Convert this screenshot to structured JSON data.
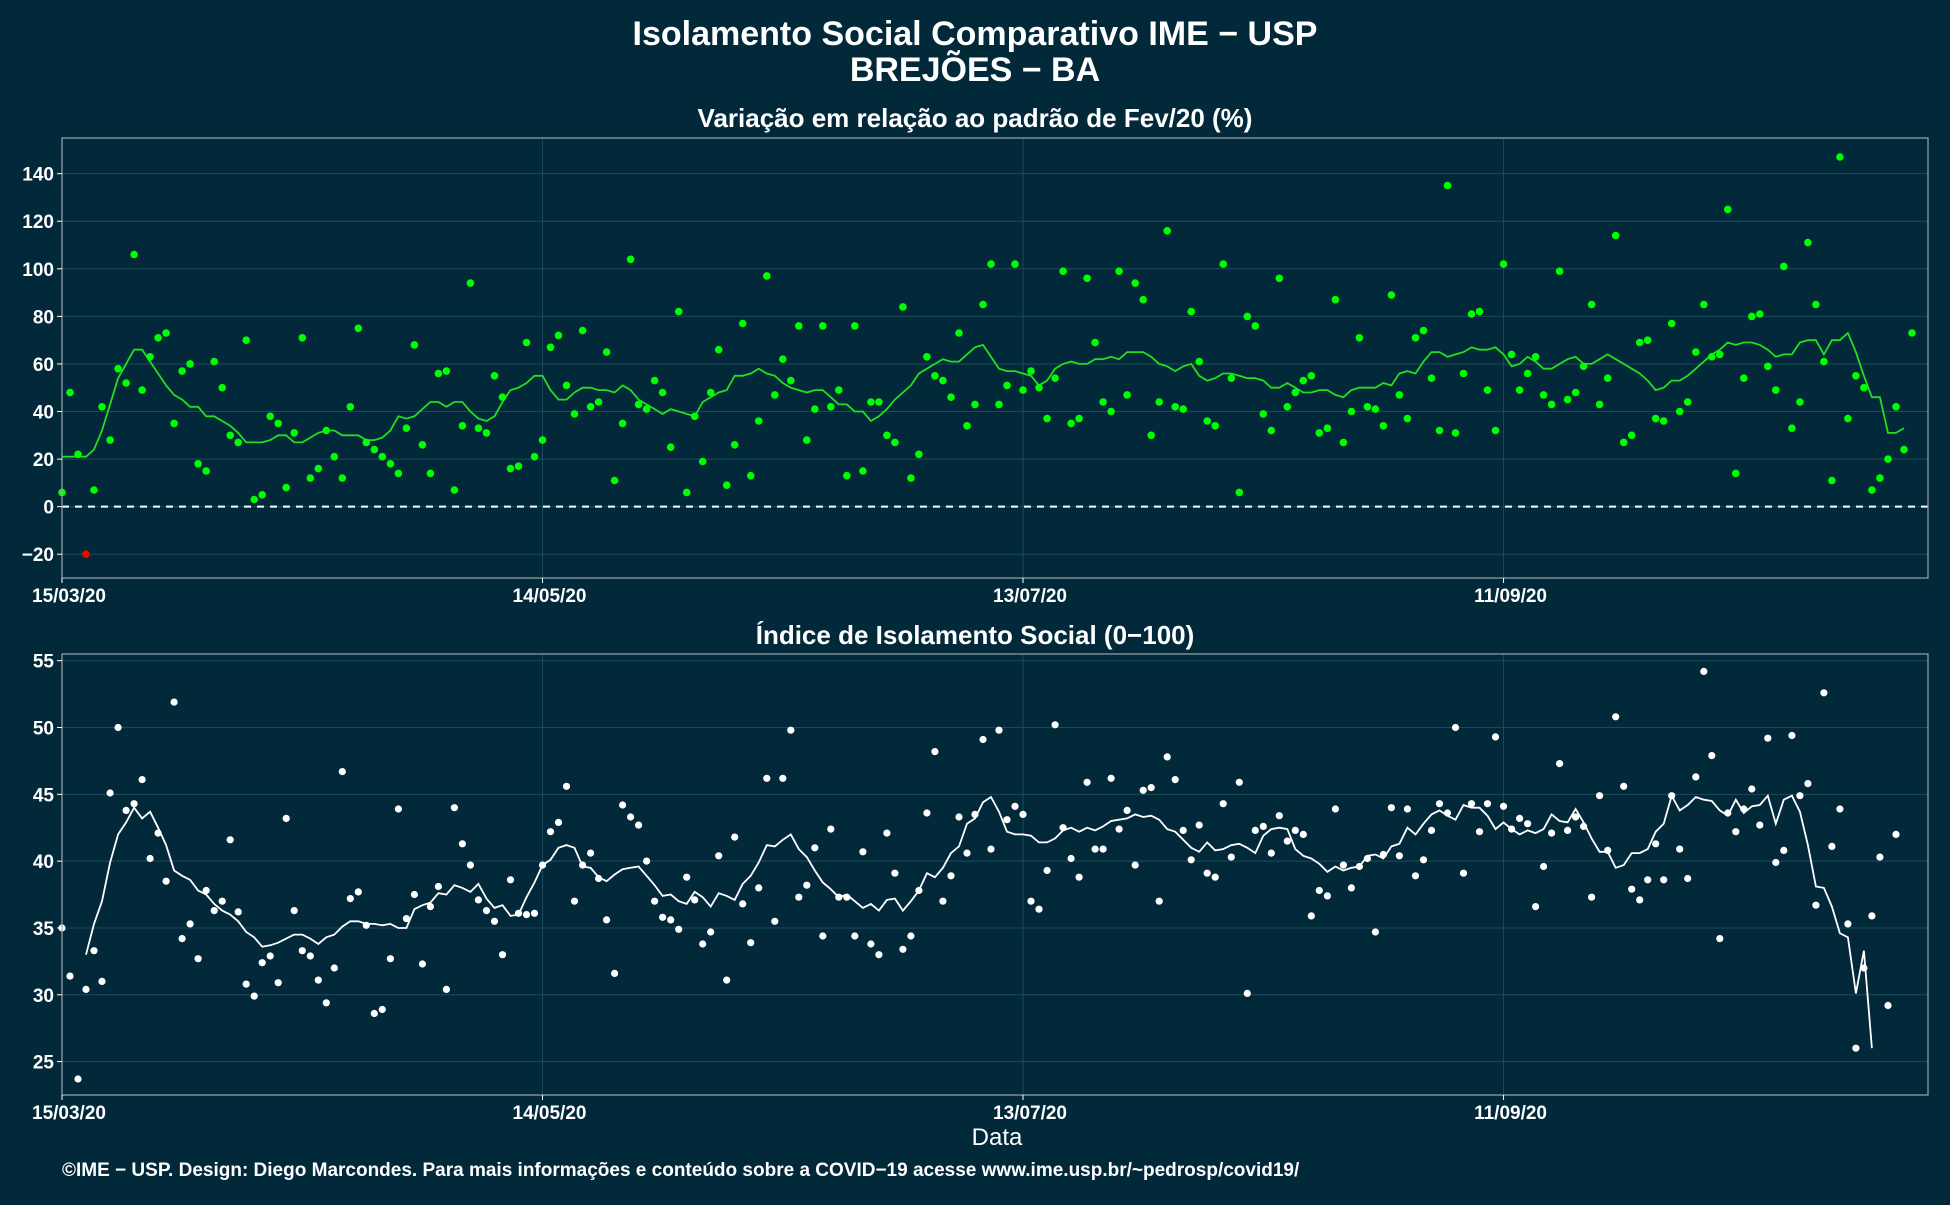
{
  "title_line1": "Isolamento Social Comparativo IME − USP",
  "title_line2": "BREJÕES − BA",
  "footer": "©IME − USP. Design: Diego Marcondes. Para mais informações e conteúdo sobre a COVID−19 acesse www.ime.usp.br/~pedrosp/covid19/",
  "colors": {
    "background": "#02293a",
    "panel_border": "#9aa7ad",
    "grid": "#1c4a5a",
    "green": "#00ff00",
    "line_green": "#22dd22",
    "white": "#ffffff",
    "negative": "#ff0000"
  },
  "chart_data": [
    {
      "type": "scatter",
      "title": "Variação em relação ao padrão de Fev/20 (%)",
      "xlabel": "",
      "ylabel": "",
      "x_start": "15/03/20",
      "x_tick_labels": [
        "15/03/20",
        "14/05/20",
        "13/07/20",
        "11/09/20"
      ],
      "x_tick_days": [
        0,
        60,
        120,
        180
      ],
      "xlim_days": [
        0,
        233
      ],
      "ylim": [
        -30,
        155
      ],
      "y_ticks": [
        -20,
        0,
        20,
        40,
        60,
        80,
        100,
        120,
        140
      ],
      "reference_line": 0,
      "grid": true,
      "series": [
        {
          "values": [
            6,
            48,
            22,
            -20,
            7,
            42,
            28,
            58,
            52,
            106,
            49,
            63,
            71,
            73,
            35,
            57,
            60,
            18,
            15,
            61,
            50,
            30,
            27,
            70,
            3,
            5,
            38,
            35,
            8,
            31,
            71,
            12,
            16,
            32,
            21,
            12,
            42,
            75,
            27,
            24,
            21,
            18,
            14,
            33,
            68,
            26,
            14,
            56,
            57,
            7,
            34,
            94,
            33,
            31,
            55,
            46,
            16,
            17,
            69,
            21,
            28,
            67,
            72,
            51,
            39,
            74,
            42,
            44,
            65,
            11,
            35,
            104,
            43,
            41,
            53,
            48,
            25,
            82,
            6,
            38,
            19,
            48,
            66,
            9,
            26,
            77,
            13,
            36,
            97,
            47,
            62,
            53,
            76,
            28,
            41,
            76,
            42,
            49,
            13,
            76,
            15,
            44,
            44,
            30,
            27,
            84,
            12,
            22,
            63,
            55,
            53,
            46,
            73,
            34,
            43,
            85,
            102,
            43,
            51,
            102,
            49,
            57,
            50,
            37,
            54,
            99,
            35,
            37,
            96,
            69,
            44,
            40,
            99,
            47,
            94,
            87,
            30,
            44,
            116,
            42,
            41,
            82,
            61,
            36,
            34,
            102,
            54,
            6,
            80,
            76,
            39,
            32,
            96,
            42,
            48,
            53,
            55,
            31,
            33,
            87,
            27,
            40,
            71,
            42,
            41,
            34,
            89,
            47,
            37,
            71,
            74,
            54,
            32,
            135,
            31,
            56,
            81,
            82,
            49,
            32,
            102,
            64,
            49,
            56,
            63,
            47,
            43,
            99,
            45,
            48,
            59,
            85,
            43,
            54,
            114,
            27,
            30,
            69,
            70,
            37,
            36,
            77,
            40,
            44,
            65,
            85,
            63,
            64,
            125,
            14,
            54,
            80,
            81,
            59,
            49,
            101,
            33,
            44,
            111,
            85,
            61,
            11,
            147,
            37,
            55,
            50,
            7,
            12,
            20,
            42,
            24,
            73
          ]
        },
        {
          "values": [
            21,
            21,
            21,
            21,
            24,
            32,
            43,
            54,
            60,
            66,
            66,
            61,
            56,
            51,
            47,
            45,
            42,
            42,
            38,
            38,
            36,
            34,
            31,
            27,
            27,
            27,
            28,
            30,
            30,
            27,
            27,
            29,
            31,
            32,
            32,
            30,
            30,
            30,
            28,
            28,
            29,
            32,
            38,
            37,
            38,
            41,
            44,
            44,
            42,
            44,
            44,
            40,
            37,
            36,
            38,
            44,
            49,
            50,
            52,
            55,
            55,
            49,
            45,
            45,
            48,
            50,
            50,
            49,
            49,
            48,
            51,
            49,
            45,
            43,
            41,
            39,
            41,
            40,
            39,
            38,
            44,
            46,
            48,
            49,
            55,
            55,
            56,
            58,
            56,
            55,
            52,
            50,
            49,
            48,
            49,
            49,
            46,
            43,
            43,
            40,
            40,
            36,
            38,
            41,
            45,
            48,
            51,
            56,
            58,
            60,
            62,
            61,
            61,
            64,
            67,
            68,
            63,
            58,
            57,
            57,
            56,
            55,
            51,
            53,
            58,
            60,
            61,
            60,
            60,
            62,
            62,
            63,
            62,
            65,
            65,
            65,
            63,
            60,
            59,
            57,
            59,
            60,
            55,
            53,
            54,
            56,
            56,
            55,
            54,
            54,
            53,
            50,
            50,
            52,
            50,
            48,
            48,
            49,
            49,
            47,
            46,
            49,
            50,
            50,
            50,
            52,
            51,
            56,
            57,
            56,
            61,
            65,
            65,
            63,
            64,
            65,
            67,
            66,
            66,
            67,
            64,
            59,
            60,
            63,
            61,
            58,
            58,
            60,
            62,
            63,
            60,
            60,
            62,
            64,
            62,
            60,
            58,
            56,
            53,
            49,
            50,
            53,
            53,
            55,
            58,
            61,
            64,
            66,
            69,
            68,
            69,
            69,
            68,
            66,
            63,
            64,
            64,
            69,
            70,
            70,
            64,
            70,
            70,
            73,
            65,
            55,
            46,
            46,
            31,
            31,
            33
          ]
        }
      ]
    },
    {
      "type": "scatter",
      "title": "Índice de Isolamento Social (0−100)",
      "xlabel": "Data",
      "ylabel": "",
      "x_start": "15/03/20",
      "x_tick_labels": [
        "15/03/20",
        "14/05/20",
        "13/07/20",
        "11/09/20"
      ],
      "x_tick_days": [
        0,
        60,
        120,
        180
      ],
      "xlim_days": [
        0,
        233
      ],
      "ylim": [
        22.5,
        55.5
      ],
      "y_ticks": [
        25,
        30,
        35,
        40,
        45,
        50,
        55
      ],
      "grid": true,
      "series": [
        {
          "values": [
            35.0,
            31.4,
            23.7,
            30.4,
            33.3,
            31.0,
            45.1,
            50.0,
            43.8,
            44.3,
            46.1,
            40.2,
            42.1,
            38.5,
            51.9,
            34.2,
            35.3,
            32.7,
            37.8,
            36.3,
            37.0,
            41.6,
            36.2,
            30.8,
            29.9,
            32.4,
            32.9,
            30.9,
            43.2,
            36.3,
            33.3,
            32.9,
            31.1,
            29.4,
            32.0,
            46.7,
            37.2,
            37.7,
            35.2,
            28.6,
            28.9,
            32.7,
            43.9,
            35.7,
            37.5,
            32.3,
            36.6,
            38.1,
            30.4,
            44.0,
            41.3,
            39.7,
            37.1,
            36.3,
            35.5,
            33.0,
            38.6,
            36.1,
            36.0,
            36.1,
            39.7,
            42.2,
            42.9,
            45.6,
            37.0,
            39.7,
            40.6,
            38.7,
            35.6,
            31.6,
            44.2,
            43.3,
            42.7,
            40.0,
            37.0,
            35.8,
            35.6,
            34.9,
            38.8,
            37.1,
            33.8,
            34.7,
            40.4,
            31.1,
            41.8,
            36.8,
            33.9,
            38.0,
            46.2,
            35.5,
            46.2,
            49.8,
            37.3,
            38.2,
            41.0,
            34.4,
            42.4,
            37.3,
            37.3,
            34.4,
            40.7,
            33.8,
            33.0,
            42.1,
            39.1,
            33.4,
            34.4,
            37.8,
            43.6,
            48.2,
            37.0,
            38.9,
            43.3,
            40.6,
            43.5,
            49.1,
            40.9,
            49.8,
            43.1,
            44.1,
            43.5,
            37.0,
            36.4,
            39.3,
            50.2,
            42.5,
            40.2,
            38.8,
            45.9,
            40.9,
            40.9,
            46.2,
            42.4,
            43.8,
            39.7,
            45.3,
            45.5,
            37.0,
            47.8,
            46.1,
            42.3,
            40.1,
            42.7,
            39.1,
            38.8,
            44.3,
            40.3,
            45.9,
            30.1,
            42.3,
            42.6,
            40.6,
            43.4,
            41.5,
            42.3,
            42.0,
            35.9,
            37.8,
            37.4,
            43.9,
            39.7,
            38.0,
            39.6,
            40.2,
            34.7,
            40.5,
            44.0,
            40.4,
            43.9,
            38.9,
            40.1,
            42.3,
            44.3,
            43.6,
            50.0,
            39.1,
            44.3,
            42.2,
            44.3,
            49.3,
            44.1,
            42.4,
            43.2,
            42.8,
            36.6,
            39.6,
            42.1,
            47.3,
            42.3,
            43.3,
            42.6,
            37.3,
            44.9,
            40.8,
            50.8,
            45.6,
            37.9,
            37.1,
            38.6,
            41.3,
            38.6,
            44.9,
            40.9,
            38.7,
            46.3,
            54.2,
            47.9,
            34.2,
            43.6,
            42.2,
            43.9,
            45.4,
            42.7,
            49.2,
            39.9,
            40.8,
            49.4,
            44.9,
            45.8,
            36.7,
            52.6,
            41.1,
            43.9,
            35.3,
            26.0,
            32.0,
            35.9,
            40.3,
            29.2,
            42.0
          ]
        },
        {
          "values": [
            null,
            null,
            null,
            33.0,
            35.3,
            37.0,
            39.9,
            42.0,
            42.9,
            44.0,
            43.2,
            43.7,
            42.5,
            41.2,
            39.3,
            38.9,
            38.6,
            37.8,
            37.5,
            36.8,
            36.3,
            36.0,
            35.5,
            34.7,
            34.3,
            33.6,
            33.7,
            33.9,
            34.2,
            34.5,
            34.5,
            34.2,
            33.8,
            34.3,
            34.5,
            35.1,
            35.5,
            35.5,
            35.3,
            35.3,
            35.2,
            35.3,
            35.0,
            35.0,
            36.4,
            36.7,
            36.9,
            37.6,
            37.5,
            38.2,
            38.0,
            37.7,
            38.3,
            37.2,
            36.5,
            36.7,
            35.9,
            36.0,
            37.3,
            38.4,
            39.7,
            40.1,
            41.0,
            41.2,
            41.0,
            39.6,
            39.5,
            38.8,
            38.5,
            39.0,
            39.4,
            39.5,
            39.6,
            38.9,
            38.2,
            37.4,
            37.5,
            37.0,
            36.8,
            37.7,
            37.3,
            36.6,
            37.6,
            37.4,
            37.1,
            38.3,
            38.9,
            39.9,
            41.2,
            41.1,
            41.6,
            42.0,
            40.9,
            40.3,
            39.3,
            38.4,
            37.9,
            37.3,
            37.5,
            37.0,
            36.5,
            36.8,
            36.3,
            37.1,
            37.2,
            36.3,
            37.0,
            37.8,
            39.1,
            38.8,
            39.5,
            40.6,
            41.1,
            42.8,
            43.2,
            44.4,
            44.8,
            43.7,
            42.2,
            42.0,
            42.0,
            41.9,
            41.4,
            41.4,
            41.7,
            42.3,
            42.5,
            42.2,
            42.5,
            42.3,
            42.6,
            43.0,
            43.1,
            43.2,
            43.5,
            43.3,
            43.4,
            43.1,
            42.4,
            42.2,
            41.6,
            41.0,
            40.7,
            41.4,
            40.8,
            40.9,
            41.2,
            41.3,
            41.0,
            40.6,
            41.9,
            42.4,
            42.5,
            42.4,
            40.9,
            40.4,
            40.2,
            39.8,
            39.2,
            39.6,
            39.3,
            39.5,
            39.6,
            40.4,
            40.5,
            40.2,
            41.1,
            41.3,
            42.5,
            42.0,
            42.8,
            43.5,
            43.8,
            43.4,
            43.1,
            44.2,
            44.0,
            44.0,
            43.4,
            42.4,
            42.9,
            42.4,
            42.0,
            42.3,
            42.1,
            42.4,
            43.5,
            43.0,
            42.9,
            43.9,
            42.9,
            41.7,
            40.7,
            40.7,
            39.5,
            39.7,
            40.6,
            40.6,
            40.9,
            42.2,
            42.8,
            44.9,
            43.8,
            44.2,
            44.8,
            44.6,
            44.5,
            43.8,
            43.4,
            44.6,
            43.6,
            44.1,
            44.2,
            44.9,
            42.8,
            44.6,
            44.9,
            43.7,
            41.2,
            38.1,
            38.0,
            36.6,
            34.6,
            34.3,
            30.1,
            33.3,
            26.0
          ]
        }
      ]
    }
  ]
}
